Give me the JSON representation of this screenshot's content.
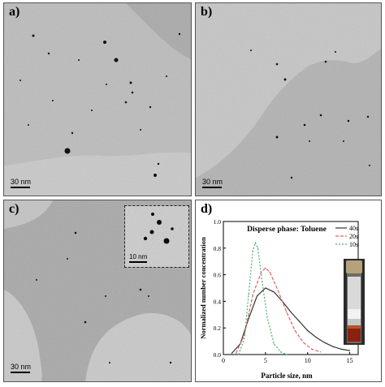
{
  "panels": {
    "a": {
      "label": "a)",
      "scale": "30 nm"
    },
    "b": {
      "label": "b)",
      "scale": "30 nm"
    },
    "c": {
      "label": "c)",
      "scale": "30 nm",
      "inset_scale": "10 nm"
    },
    "d": {
      "label": "d)"
    }
  },
  "chart_data": {
    "type": "line",
    "title": "Disperse phase: Toluene",
    "xlabel": "Particle size, nm",
    "ylabel": "Normalized number concentration",
    "xlim": [
      0,
      16
    ],
    "ylim": [
      0,
      1.0
    ],
    "xticks": [
      "0",
      "5",
      "10",
      "15"
    ],
    "yticks": [
      "0.0",
      "0.2",
      "0.4",
      "0.6",
      "0.8",
      "1.0"
    ],
    "legend_position": "top-right",
    "series": [
      {
        "name": "40s",
        "color": "#333333",
        "dash": "solid",
        "x": [
          1.0,
          2.0,
          3.0,
          4.0,
          5.0,
          6.0,
          7.0,
          8.0,
          9.0,
          10.0,
          11.0,
          12.0,
          13.0,
          14.0,
          15.0
        ],
        "y": [
          0.01,
          0.08,
          0.27,
          0.44,
          0.5,
          0.47,
          0.4,
          0.32,
          0.25,
          0.18,
          0.13,
          0.09,
          0.06,
          0.04,
          0.03
        ]
      },
      {
        "name": "20s",
        "color": "#e06060",
        "dash": "4,2",
        "x": [
          1.5,
          2.5,
          3.5,
          4.5,
          5.0,
          5.5,
          6.5,
          7.5,
          8.5,
          9.5,
          10.5,
          11.5
        ],
        "y": [
          0.01,
          0.15,
          0.45,
          0.62,
          0.65,
          0.62,
          0.48,
          0.32,
          0.18,
          0.09,
          0.04,
          0.02
        ]
      },
      {
        "name": "10s",
        "color": "#40b070",
        "dash": "2,2",
        "x": [
          1.8,
          2.5,
          3.0,
          3.5,
          3.8,
          4.1,
          4.6,
          5.2,
          6.0,
          6.8,
          7.5
        ],
        "y": [
          0.0,
          0.12,
          0.45,
          0.78,
          0.84,
          0.8,
          0.55,
          0.28,
          0.08,
          0.02,
          0.0
        ]
      }
    ]
  }
}
